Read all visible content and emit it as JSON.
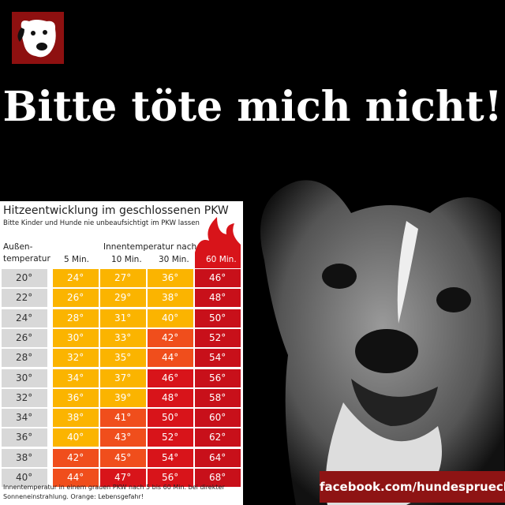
{
  "header": {
    "title": "Bitte töte mich nicht!"
  },
  "table": {
    "title": "Hitzeentwicklung im geschlossenen PKW",
    "subtitle": "Bitte Kinder und Hunde nie unbeaufsichtigt im PKW lassen",
    "outside_header": [
      "Außen-",
      "temperatur"
    ],
    "inside_header": "Innentemperatur nach",
    "columns": [
      "5 Min.",
      "10 Min.",
      "30 Min.",
      "60 Min."
    ],
    "rows": [
      [
        "20°",
        "24°",
        "27°",
        "36°",
        "46°"
      ],
      [
        "22°",
        "26°",
        "29°",
        "38°",
        "48°"
      ],
      [
        "24°",
        "28°",
        "31°",
        "40°",
        "50°"
      ],
      [
        "26°",
        "30°",
        "33°",
        "42°",
        "52°"
      ],
      [
        "28°",
        "32°",
        "35°",
        "44°",
        "54°"
      ],
      [
        "30°",
        "34°",
        "37°",
        "46°",
        "56°"
      ],
      [
        "32°",
        "36°",
        "39°",
        "48°",
        "58°"
      ],
      [
        "34°",
        "38°",
        "41°",
        "50°",
        "60°"
      ],
      [
        "36°",
        "40°",
        "43°",
        "52°",
        "62°"
      ],
      [
        "38°",
        "42°",
        "45°",
        "54°",
        "64°"
      ],
      [
        "40°",
        "44°",
        "47°",
        "56°",
        "68°"
      ]
    ],
    "footnote": [
      "Innentemperatur in einem grauen PKW nach 5 bis 60 Min. bei direkter",
      "Sonneneinstrahlung. Orange: Lebensgefahr!"
    ]
  },
  "footer": {
    "link": "facebook.com/hundesprueche"
  }
}
